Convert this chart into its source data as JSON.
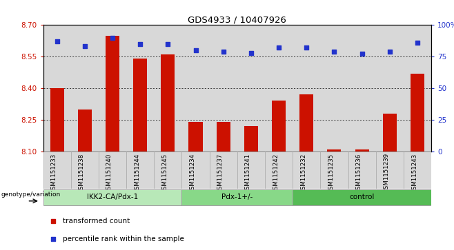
{
  "title": "GDS4933 / 10407926",
  "samples": [
    "GSM1151233",
    "GSM1151238",
    "GSM1151240",
    "GSM1151244",
    "GSM1151245",
    "GSM1151234",
    "GSM1151237",
    "GSM1151241",
    "GSM1151242",
    "GSM1151232",
    "GSM1151235",
    "GSM1151236",
    "GSM1151239",
    "GSM1151243"
  ],
  "bar_values": [
    8.4,
    8.3,
    8.65,
    8.54,
    8.56,
    8.24,
    8.24,
    8.22,
    8.34,
    8.37,
    8.11,
    8.11,
    8.28,
    8.47
  ],
  "dot_values": [
    87,
    83,
    90,
    85,
    85,
    80,
    79,
    78,
    82,
    82,
    79,
    77,
    79,
    86
  ],
  "groups": [
    {
      "label": "IKK2-CA/Pdx-1",
      "start": 0,
      "end": 5,
      "color": "#b8e8b8"
    },
    {
      "label": "Pdx-1+/-",
      "start": 5,
      "end": 9,
      "color": "#88d888"
    },
    {
      "label": "control",
      "start": 9,
      "end": 14,
      "color": "#55bb55"
    }
  ],
  "ymin": 8.1,
  "ymax": 8.7,
  "y2min": 0,
  "y2max": 100,
  "yticks": [
    8.1,
    8.25,
    8.4,
    8.55,
    8.7
  ],
  "y2ticks": [
    0,
    25,
    50,
    75,
    100
  ],
  "bar_color": "#cc1100",
  "dot_color": "#2233cc",
  "bar_width": 0.5,
  "legend_label_bar": "transformed count",
  "legend_label_dot": "percentile rank within the sample",
  "xlabel_group": "genotype/variation",
  "background_color": "#ffffff",
  "tick_label_color_left": "#cc1100",
  "tick_label_color_right": "#2233cc",
  "sample_bg_color": "#d8d8d8",
  "group_border_color": "#999999"
}
